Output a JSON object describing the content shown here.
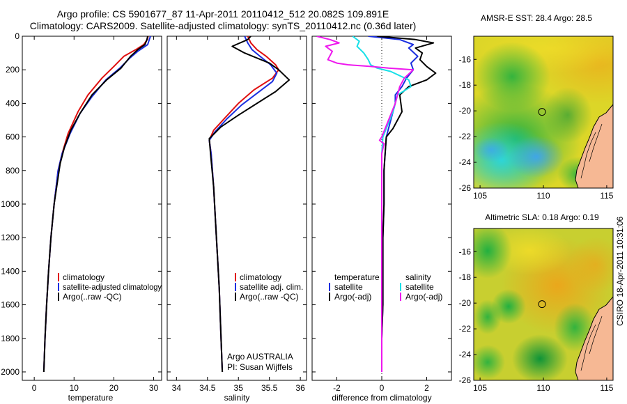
{
  "header": {
    "title1": "Argo profile: CS 5901677_87 11-Apr-2011 20110412_512 20.082S 109.891E",
    "title2": "Climatology: CARS2009. Satellite-adjusted climatology: synTS_20110412.nc (0.36d later)"
  },
  "colors": {
    "climatology": "#e01010",
    "satellite": "#1b2fe0",
    "argo": "#000000",
    "sat_salinity": "#18e0e8",
    "argo_adj_salinity": "#ee18ee",
    "land": "#f6b894"
  },
  "chart_data": [
    {
      "id": "temperature",
      "type": "line",
      "xlabel": "temperature",
      "ylabel": "",
      "xlim": [
        -3,
        32
      ],
      "ylim": [
        2050,
        0
      ],
      "x_ticks": [
        0,
        10,
        20,
        30
      ],
      "y_ticks": [
        0,
        200,
        400,
        600,
        800,
        1000,
        1200,
        1400,
        1600,
        1800,
        2000
      ],
      "series": [
        {
          "name": "climatology",
          "color": "#e01010",
          "points": [
            [
              28.6,
              0
            ],
            [
              28.4,
              20
            ],
            [
              27.5,
              50
            ],
            [
              25.5,
              80
            ],
            [
              22.5,
              120
            ],
            [
              20,
              180
            ],
            [
              17,
              250
            ],
            [
              13.5,
              350
            ],
            [
              11,
              450
            ],
            [
              8.5,
              580
            ],
            [
              7,
              700
            ],
            [
              6,
              800
            ],
            [
              5,
              1000
            ],
            [
              4.2,
              1200
            ],
            [
              3.6,
              1400
            ],
            [
              3.1,
              1600
            ],
            [
              2.7,
              1800
            ],
            [
              2.4,
              2000
            ]
          ]
        },
        {
          "name": "satellite-adjusted climatology",
          "color": "#1b2fe0",
          "points": [
            [
              29.2,
              0
            ],
            [
              28.9,
              20
            ],
            [
              28.5,
              50
            ],
            [
              26,
              90
            ],
            [
              24,
              130
            ],
            [
              21.5,
              190
            ],
            [
              18,
              260
            ],
            [
              14.5,
              360
            ],
            [
              11.5,
              460
            ],
            [
              9,
              580
            ],
            [
              7,
              700
            ],
            [
              6,
              800
            ],
            [
              5,
              1000
            ],
            [
              4.2,
              1200
            ],
            [
              3.6,
              1400
            ],
            [
              3.1,
              1600
            ],
            [
              2.7,
              1800
            ],
            [
              2.4,
              2000
            ]
          ]
        },
        {
          "name": "Argo(..raw -QC)",
          "color": "#000000",
          "points": [
            [
              28.5,
              0
            ],
            [
              28.3,
              20
            ],
            [
              27.8,
              50
            ],
            [
              26,
              80
            ],
            [
              24.2,
              120
            ],
            [
              21.8,
              190
            ],
            [
              18.2,
              260
            ],
            [
              14.5,
              350
            ],
            [
              11.5,
              460
            ],
            [
              9.2,
              560
            ],
            [
              7.6,
              660
            ],
            [
              6.5,
              760
            ],
            [
              5,
              1000
            ],
            [
              4.2,
              1200
            ],
            [
              3.6,
              1400
            ],
            [
              3.1,
              1600
            ],
            [
              2.7,
              1800
            ],
            [
              2.4,
              2000
            ]
          ]
        }
      ],
      "legend": [
        "climatology",
        "satellite-adjusted climatology",
        "Argo(..raw -QC)"
      ]
    },
    {
      "id": "salinity",
      "type": "line",
      "xlabel": "salinity",
      "ylabel": "",
      "xlim": [
        33.85,
        36.1
      ],
      "ylim": [
        2050,
        0
      ],
      "x_ticks": [
        34,
        34.5,
        35,
        35.5,
        36
      ],
      "y_ticks": [],
      "series": [
        {
          "name": "climatology",
          "color": "#e01010",
          "points": [
            [
              35.15,
              0
            ],
            [
              35.2,
              40
            ],
            [
              35.3,
              80
            ],
            [
              35.45,
              120
            ],
            [
              35.6,
              170
            ],
            [
              35.65,
              200
            ],
            [
              35.55,
              250
            ],
            [
              35.25,
              320
            ],
            [
              35.0,
              400
            ],
            [
              34.8,
              480
            ],
            [
              34.6,
              560
            ],
            [
              34.53,
              620
            ],
            [
              34.56,
              700
            ],
            [
              34.6,
              900
            ],
            [
              34.63,
              1100
            ],
            [
              34.66,
              1300
            ],
            [
              34.69,
              1500
            ],
            [
              34.71,
              1700
            ],
            [
              34.73,
              1900
            ],
            [
              34.74,
              2000
            ]
          ]
        },
        {
          "name": "satellite adj. clim.",
          "color": "#1b2fe0",
          "points": [
            [
              35.1,
              0
            ],
            [
              35.15,
              40
            ],
            [
              35.22,
              80
            ],
            [
              35.35,
              120
            ],
            [
              35.52,
              170
            ],
            [
              35.62,
              220
            ],
            [
              35.55,
              270
            ],
            [
              35.3,
              340
            ],
            [
              35.05,
              410
            ],
            [
              34.82,
              490
            ],
            [
              34.62,
              570
            ],
            [
              34.53,
              620
            ],
            [
              34.56,
              700
            ],
            [
              34.6,
              900
            ],
            [
              34.63,
              1100
            ],
            [
              34.66,
              1300
            ],
            [
              34.69,
              1500
            ],
            [
              34.71,
              1700
            ],
            [
              34.73,
              1900
            ],
            [
              34.74,
              2000
            ]
          ]
        },
        {
          "name": "Argo(..raw -QC)",
          "color": "#000000",
          "points": [
            [
              35.2,
              0
            ],
            [
              35.15,
              20
            ],
            [
              34.9,
              60
            ],
            [
              35.1,
              100
            ],
            [
              35.5,
              160
            ],
            [
              35.65,
              200
            ],
            [
              35.82,
              260
            ],
            [
              35.6,
              330
            ],
            [
              35.3,
              400
            ],
            [
              35.0,
              470
            ],
            [
              34.72,
              540
            ],
            [
              34.53,
              610
            ],
            [
              34.55,
              700
            ],
            [
              34.6,
              900
            ],
            [
              34.63,
              1100
            ],
            [
              34.66,
              1300
            ],
            [
              34.69,
              1500
            ],
            [
              34.71,
              1700
            ],
            [
              34.73,
              1900
            ],
            [
              34.74,
              2000
            ]
          ]
        }
      ],
      "legend": [
        "climatology",
        "satellite adj. clim.",
        "Argo(..raw -QC)"
      ],
      "annotations": [
        "Argo AUSTRALIA",
        "PI: Susan Wijffels"
      ]
    },
    {
      "id": "difference",
      "type": "line",
      "xlabel": "difference from climatology",
      "ylabel": "",
      "xlim": [
        -3.1,
        3.1
      ],
      "ylim": [
        2050,
        0
      ],
      "x_ticks": [
        -2,
        0,
        2
      ],
      "y_ticks": [],
      "zero_line": "dotted",
      "series": [
        {
          "name": "temperature satellite",
          "color": "#1b2fe0",
          "points": [
            [
              -0.6,
              0
            ],
            [
              0.8,
              20
            ],
            [
              1.4,
              50
            ],
            [
              1.2,
              70
            ],
            [
              1.6,
              120
            ],
            [
              1.3,
              160
            ],
            [
              1.4,
              200
            ],
            [
              1.1,
              250
            ],
            [
              0.9,
              300
            ],
            [
              0.6,
              350
            ],
            [
              0.6,
              400
            ],
            [
              0.4,
              500
            ],
            [
              0.2,
              600
            ],
            [
              0.15,
              700
            ],
            [
              0.1,
              800
            ],
            [
              0.1,
              1000
            ],
            [
              0.05,
              1200
            ],
            [
              0.05,
              1400
            ],
            [
              0.05,
              1600
            ],
            [
              0.0,
              1800
            ],
            [
              0.0,
              2000
            ]
          ]
        },
        {
          "name": "temperature Argo(-adj)",
          "color": "#000000",
          "points": [
            [
              -0.2,
              0
            ],
            [
              1.5,
              20
            ],
            [
              2.3,
              40
            ],
            [
              1.5,
              70
            ],
            [
              1.8,
              100
            ],
            [
              1.7,
              140
            ],
            [
              2.0,
              180
            ],
            [
              2.4,
              220
            ],
            [
              2.0,
              260
            ],
            [
              1.2,
              300
            ],
            [
              0.8,
              350
            ],
            [
              0.9,
              450
            ],
            [
              0.5,
              550
            ],
            [
              0.2,
              600
            ],
            [
              0.15,
              700
            ],
            [
              0.1,
              800
            ],
            [
              0.1,
              1000
            ],
            [
              0.05,
              1200
            ],
            [
              0.05,
              1400
            ],
            [
              0.05,
              1600
            ],
            [
              0.0,
              1800
            ],
            [
              0.0,
              2000
            ]
          ]
        },
        {
          "name": "salinity satellite",
          "color": "#18e0e8",
          "points": [
            [
              -1.3,
              0
            ],
            [
              -1.0,
              30
            ],
            [
              -1.1,
              60
            ],
            [
              -0.8,
              100
            ],
            [
              -0.6,
              140
            ],
            [
              -0.5,
              170
            ],
            [
              -0.2,
              190
            ],
            [
              0.4,
              210
            ],
            [
              1.2,
              260
            ],
            [
              1.3,
              300
            ],
            [
              0.7,
              350
            ],
            [
              0.5,
              450
            ],
            [
              0.2,
              550
            ],
            [
              0.05,
              600
            ],
            [
              0.0,
              700
            ],
            [
              0.0,
              1000
            ],
            [
              0.0,
              1500
            ],
            [
              0.0,
              2000
            ]
          ]
        },
        {
          "name": "salinity Argo(-adj)",
          "color": "#ee18ee",
          "points": [
            [
              -2.9,
              0
            ],
            [
              -2.3,
              20
            ],
            [
              -1.9,
              40
            ],
            [
              -2.5,
              60
            ],
            [
              -2.2,
              90
            ],
            [
              -2.4,
              140
            ],
            [
              -2.0,
              160
            ],
            [
              -1.5,
              170
            ],
            [
              -0.5,
              180
            ],
            [
              0.3,
              190
            ],
            [
              1.4,
              200
            ],
            [
              1.0,
              250
            ],
            [
              0.8,
              300
            ],
            [
              0.6,
              400
            ],
            [
              0.3,
              500
            ],
            [
              0.0,
              600
            ],
            [
              -0.1,
              620
            ],
            [
              0.1,
              640
            ],
            [
              0.0,
              700
            ],
            [
              0.0,
              1000
            ],
            [
              0.0,
              1500
            ],
            [
              0.0,
              2000
            ]
          ]
        }
      ],
      "legend": {
        "temperature_head": "temperature",
        "salinity_head": "salinity",
        "items": [
          "satellite",
          "Argo(-adj)",
          "satellite",
          "Argo(-adj)"
        ]
      }
    },
    {
      "id": "sst_map",
      "type": "heatmap",
      "title": "AMSR-E SST: 28.4 Argo: 28.5",
      "xlim": [
        104.5,
        115.5
      ],
      "ylim": [
        -26,
        -14.2
      ],
      "x_ticks": [
        105,
        110,
        115
      ],
      "y_ticks": [
        -16,
        -18,
        -20,
        -22,
        -24,
        -26
      ],
      "marker": [
        109.891,
        -20.082
      ]
    },
    {
      "id": "sla_map",
      "type": "heatmap",
      "title": "Altimetric SLA: 0.18 Argo: 0.19",
      "xlim": [
        104.5,
        115.5
      ],
      "ylim": [
        -26,
        -14.2
      ],
      "x_ticks": [
        105,
        110,
        115
      ],
      "y_ticks": [
        -16,
        -18,
        -20,
        -22,
        -24,
        -26
      ],
      "marker": [
        109.891,
        -20.082
      ]
    }
  ],
  "footer": {
    "stamp": "CSIRO 18-Apr-2011 10:31:06"
  }
}
